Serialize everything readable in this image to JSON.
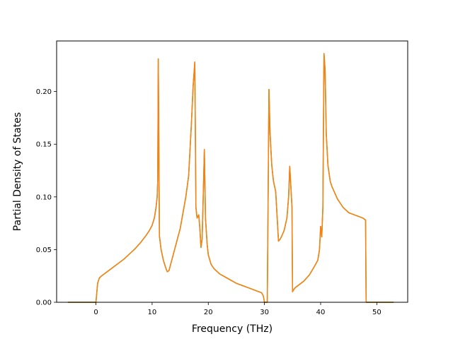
{
  "chart_data": {
    "type": "line",
    "title": "",
    "xlabel": "Frequency (THz)",
    "ylabel": "Partial Density of States",
    "xlim": [
      -7.0,
      55.5
    ],
    "ylim": [
      0.0,
      0.248
    ],
    "xticks": [
      0,
      10,
      20,
      30,
      40,
      50
    ],
    "yticks": [
      0.0,
      0.05,
      0.1,
      0.15,
      0.2
    ],
    "ytick_labels": [
      "0.00",
      "0.05",
      "0.10",
      "0.15",
      "0.20"
    ],
    "grid": false,
    "legend": "none",
    "series": [
      {
        "color_back": "#2ca02c",
        "color": "#ff7f0e",
        "x": [
          -5.0,
          0.0,
          0.3,
          0.6,
          1.0,
          2.0,
          3.0,
          4.0,
          5.0,
          6.0,
          7.0,
          8.0,
          9.0,
          9.5,
          10.0,
          10.4,
          10.7,
          10.9,
          11.0,
          11.1,
          11.3,
          11.6,
          12.0,
          12.4,
          12.7,
          13.0,
          13.5,
          14.0,
          15.0,
          15.5,
          16.0,
          16.5,
          16.8,
          17.0,
          17.3,
          17.6,
          17.8,
          18.0,
          18.3,
          18.5,
          18.7,
          18.9,
          19.1,
          19.3,
          19.5,
          19.8,
          20.0,
          20.5,
          21.0,
          22.0,
          23.0,
          24.0,
          25.0,
          26.0,
          27.0,
          28.0,
          29.0,
          29.5,
          29.8,
          30.0,
          30.5,
          30.7,
          30.8,
          31.0,
          31.3,
          31.6,
          32.0,
          32.5,
          32.8,
          33.0,
          33.5,
          34.0,
          34.3,
          34.5,
          34.7,
          34.9,
          35.0,
          35.2,
          35.5,
          36.0,
          37.0,
          38.0,
          39.0,
          39.5,
          39.8,
          40.0,
          40.2,
          40.4,
          40.6,
          40.8,
          41.0,
          41.3,
          41.7,
          42.0,
          43.0,
          44.0,
          45.0,
          46.0,
          47.0,
          47.5,
          48.0,
          48.1,
          48.3,
          50.0,
          53.0
        ],
        "y": [
          0.0,
          0.0,
          0.018,
          0.023,
          0.025,
          0.029,
          0.033,
          0.037,
          0.041,
          0.046,
          0.051,
          0.057,
          0.064,
          0.068,
          0.073,
          0.08,
          0.09,
          0.1,
          0.115,
          0.231,
          0.063,
          0.05,
          0.04,
          0.033,
          0.029,
          0.03,
          0.04,
          0.05,
          0.07,
          0.085,
          0.1,
          0.12,
          0.15,
          0.17,
          0.205,
          0.228,
          0.09,
          0.08,
          0.083,
          0.07,
          0.052,
          0.06,
          0.1,
          0.145,
          0.08,
          0.055,
          0.045,
          0.036,
          0.032,
          0.027,
          0.024,
          0.021,
          0.018,
          0.016,
          0.014,
          0.012,
          0.01,
          0.009,
          0.006,
          0.0,
          0.0,
          0.13,
          0.202,
          0.16,
          0.13,
          0.115,
          0.105,
          0.058,
          0.06,
          0.062,
          0.068,
          0.08,
          0.1,
          0.129,
          0.11,
          0.09,
          0.01,
          0.012,
          0.014,
          0.016,
          0.02,
          0.026,
          0.035,
          0.04,
          0.05,
          0.072,
          0.062,
          0.09,
          0.236,
          0.22,
          0.16,
          0.13,
          0.115,
          0.11,
          0.098,
          0.09,
          0.085,
          0.083,
          0.081,
          0.08,
          0.078,
          0.0,
          0.0,
          0.0,
          0.0
        ]
      }
    ]
  }
}
